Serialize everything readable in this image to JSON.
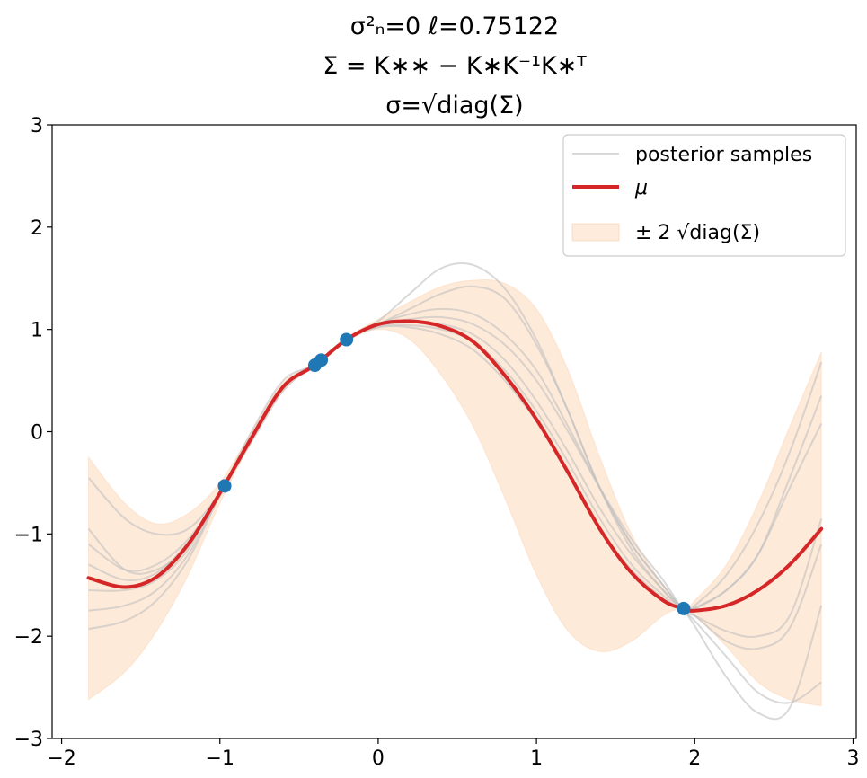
{
  "chart_data": {
    "type": "line",
    "title_lines": [
      "σ²ₙ=0   ℓ=0.75122",
      "Σ = K∗∗ − K∗K⁻¹K∗ᵀ",
      "σ=√diag(Σ)"
    ],
    "xlabel": "",
    "ylabel": "",
    "xlim": [
      -2.06,
      3.02
    ],
    "ylim": [
      -3,
      3
    ],
    "xticks": [
      -2,
      -1,
      0,
      1,
      2,
      3
    ],
    "xtick_labels": [
      "−2",
      "−1",
      "0",
      "1",
      "2",
      "3"
    ],
    "yticks": [
      -3,
      -2,
      -1,
      0,
      1,
      2,
      3
    ],
    "ytick_labels": [
      "−3",
      "−2",
      "−1",
      "0",
      "1",
      "2",
      "3"
    ],
    "grid": false,
    "legend_position": "top-right",
    "x": [
      -1.83,
      -1.6,
      -1.4,
      -1.2,
      -1.0,
      -0.8,
      -0.6,
      -0.4,
      -0.2,
      0.0,
      0.2,
      0.4,
      0.6,
      0.8,
      1.0,
      1.2,
      1.4,
      1.6,
      1.8,
      1.93,
      2.0,
      2.2,
      2.4,
      2.6,
      2.8
    ],
    "series": [
      {
        "name": "posterior samples",
        "color": "#bfbfbf",
        "samples": [
          [
            -0.45,
            -0.85,
            -1.0,
            -0.95,
            -0.6,
            -0.1,
            0.4,
            0.66,
            0.9,
            1.08,
            1.35,
            1.6,
            1.63,
            1.4,
            0.9,
            0.2,
            -0.55,
            -1.15,
            -1.55,
            -1.75,
            -1.9,
            -2.4,
            -2.75,
            -2.7,
            -1.7
          ],
          [
            -0.95,
            -1.35,
            -1.35,
            -1.1,
            -0.6,
            0.0,
            0.5,
            0.66,
            0.9,
            1.05,
            1.2,
            1.35,
            1.42,
            1.3,
            0.85,
            0.2,
            -0.55,
            -1.1,
            -1.5,
            -1.75,
            -1.85,
            -2.2,
            -2.55,
            -2.65,
            -2.45
          ],
          [
            -1.1,
            -1.35,
            -1.3,
            -1.05,
            -0.6,
            -0.05,
            0.45,
            0.66,
            0.9,
            1.05,
            1.15,
            1.2,
            1.15,
            0.95,
            0.6,
            0.05,
            -0.55,
            -1.1,
            -1.5,
            -1.75,
            -1.8,
            -1.95,
            -2.0,
            -1.8,
            -0.85
          ],
          [
            -1.3,
            -1.45,
            -1.38,
            -1.08,
            -0.6,
            -0.05,
            0.45,
            0.66,
            0.9,
            1.04,
            1.1,
            1.12,
            1.05,
            0.85,
            0.5,
            0.0,
            -0.55,
            -1.05,
            -1.45,
            -1.75,
            -1.8,
            -2.05,
            -2.12,
            -1.92,
            -1.1
          ],
          [
            -1.55,
            -1.55,
            -1.45,
            -1.15,
            -0.6,
            -0.05,
            0.45,
            0.66,
            0.9,
            1.04,
            1.07,
            1.05,
            0.95,
            0.7,
            0.3,
            -0.2,
            -0.75,
            -1.2,
            -1.55,
            -1.75,
            -1.72,
            -1.55,
            -1.2,
            -0.45,
            0.35
          ],
          [
            -1.75,
            -1.7,
            -1.55,
            -1.2,
            -0.62,
            -0.05,
            0.45,
            0.66,
            0.9,
            1.03,
            1.04,
            1.0,
            0.88,
            0.6,
            0.2,
            -0.3,
            -0.85,
            -1.3,
            -1.6,
            -1.75,
            -1.7,
            -1.4,
            -0.9,
            -0.2,
            0.68
          ],
          [
            -1.93,
            -1.85,
            -1.65,
            -1.25,
            -0.62,
            -0.05,
            0.45,
            0.66,
            0.9,
            1.02,
            1.02,
            0.95,
            0.8,
            0.5,
            0.1,
            -0.4,
            -0.95,
            -1.35,
            -1.63,
            -1.75,
            -1.73,
            -1.55,
            -1.2,
            -0.55,
            0.08
          ]
        ]
      },
      {
        "name": "μ",
        "color": "#d62728",
        "values": [
          -1.43,
          -1.52,
          -1.42,
          -1.1,
          -0.6,
          -0.06,
          0.44,
          0.65,
          0.9,
          1.05,
          1.08,
          1.03,
          0.88,
          0.55,
          0.12,
          -0.4,
          -0.95,
          -1.38,
          -1.65,
          -1.73,
          -1.75,
          -1.7,
          -1.55,
          -1.3,
          -0.95
        ]
      },
      {
        "name": "± 2 √diag(Σ)",
        "color": "#fde3cc",
        "lower": [
          -2.62,
          -2.35,
          -1.95,
          -1.4,
          -0.7,
          -0.1,
          0.4,
          0.64,
          0.88,
          1.0,
          0.9,
          0.55,
          0.05,
          -0.65,
          -1.4,
          -1.95,
          -2.15,
          -2.05,
          -1.8,
          -1.73,
          -1.8,
          -2.1,
          -2.45,
          -2.62,
          -2.68
        ],
        "upper": [
          -0.25,
          -0.7,
          -0.9,
          -0.8,
          -0.5,
          0.0,
          0.48,
          0.67,
          0.92,
          1.1,
          1.27,
          1.42,
          1.48,
          1.45,
          1.2,
          0.6,
          -0.25,
          -1.0,
          -1.5,
          -1.73,
          -1.65,
          -1.3,
          -0.7,
          0.05,
          0.78
        ]
      }
    ],
    "observations": {
      "name": "observations",
      "color": "#1f77b4",
      "x": [
        -0.97,
        -0.4,
        -0.36,
        -0.2,
        1.93
      ],
      "y": [
        -0.53,
        0.65,
        0.7,
        0.9,
        -1.73
      ]
    },
    "legend": [
      {
        "key": "samples",
        "label": "posterior samples"
      },
      {
        "key": "mean",
        "label": "μ"
      },
      {
        "key": "band",
        "label": "± 2 √diag(Σ)"
      }
    ]
  }
}
